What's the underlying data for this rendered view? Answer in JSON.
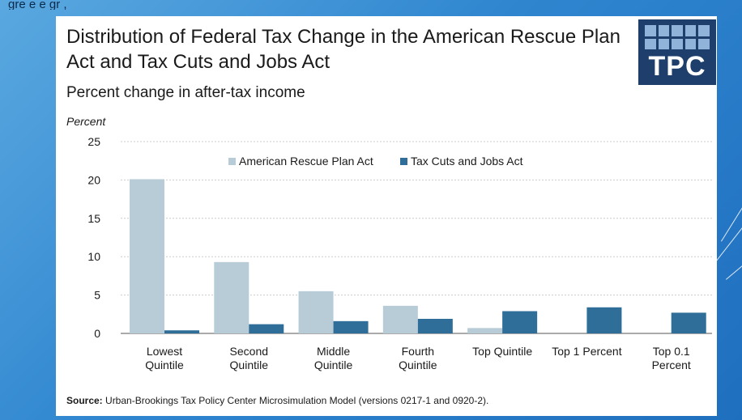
{
  "top_text": "gre     e      e gr  ,   ",
  "title": "Distribution of Federal Tax Change in the American Rescue Plan Act and Tax Cuts and Jobs Act",
  "logo_text": "TPC",
  "subtitle": "Percent change in after-tax income",
  "source_label": "Source:",
  "source_text": " Urban-Brookings Tax Policy Center Microsimulation Model (versions 0217-1 and 0920-2).",
  "colors": {
    "arpa": "#b8ccd8",
    "tcja": "#2f6e99",
    "axis": "#555555",
    "grid": "#cccccc"
  },
  "chart_data": {
    "type": "bar",
    "ylabel": "Percent",
    "ylim": [
      0,
      25
    ],
    "yticks": [
      0,
      5,
      10,
      15,
      20,
      25
    ],
    "legend_position": "top-center",
    "categories": [
      [
        "Lowest",
        "Quintile"
      ],
      [
        "Second",
        "Quintile"
      ],
      [
        "Middle",
        "Quintile"
      ],
      [
        "Fourth",
        "Quintile"
      ],
      [
        "Top Quintile"
      ],
      [
        "Top 1 Percent"
      ],
      [
        "Top 0.1",
        "Percent"
      ]
    ],
    "series": [
      {
        "name": "American Rescue Plan Act",
        "values": [
          20.1,
          9.3,
          5.5,
          3.6,
          0.7,
          0,
          0
        ]
      },
      {
        "name": "Tax Cuts and Jobs Act",
        "values": [
          0.4,
          1.2,
          1.6,
          1.9,
          2.9,
          3.4,
          2.7
        ]
      }
    ]
  }
}
